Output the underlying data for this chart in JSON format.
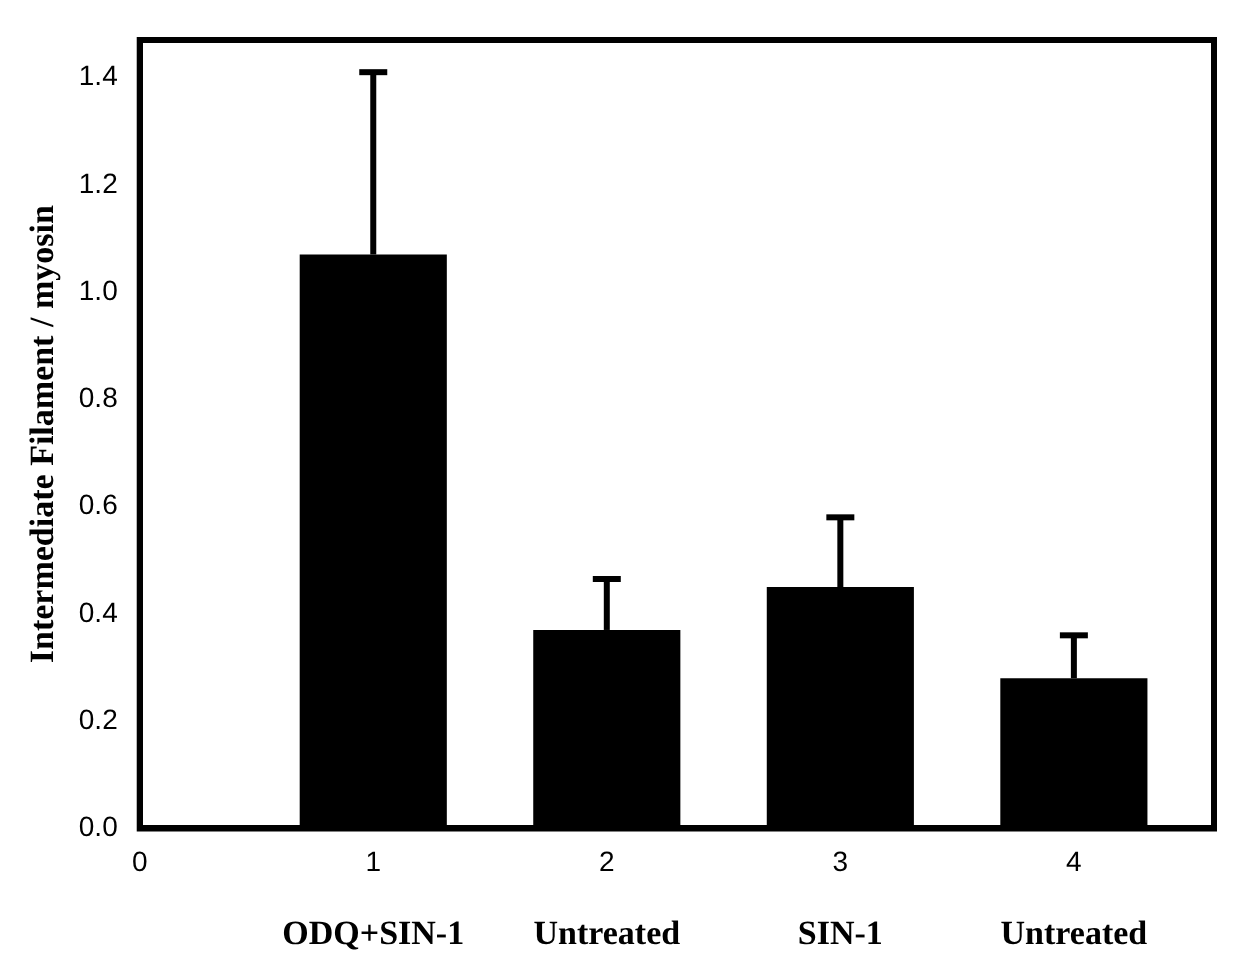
{
  "chart_data": {
    "type": "bar",
    "ylabel": "Intermediate Filament / myosin",
    "x": [
      1,
      2,
      3,
      4
    ],
    "values": [
      1.07,
      0.37,
      0.45,
      0.28
    ],
    "color": "#000000",
    "errors": [
      [
        1.07,
        1.41
      ],
      [
        0.37,
        0.465
      ],
      [
        0.45,
        0.58
      ],
      [
        0.28,
        0.36
      ]
    ],
    "xlim": [
      0,
      4.6
    ],
    "xticks": [
      0,
      1,
      2,
      3,
      4
    ],
    "ylim": [
      0,
      1.47
    ],
    "yticks": [
      {
        "value": 0,
        "label": "0.0"
      },
      0.2,
      0.4,
      0.6,
      0.8,
      {
        "value": 1,
        "label": "1.0"
      },
      1.2,
      1.4
    ],
    "annotations": [
      "ODQ+SIN-1",
      "Untreated",
      "SIN-1",
      "Untreated"
    ],
    "grid": false,
    "legend": false
  }
}
